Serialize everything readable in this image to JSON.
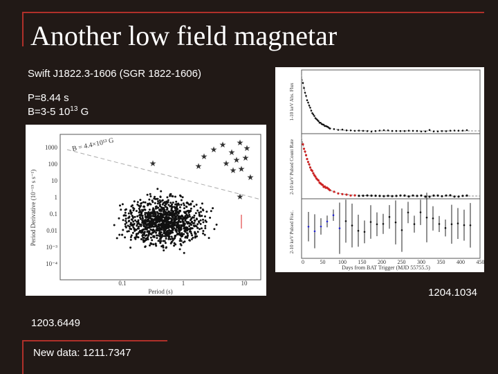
{
  "header": {
    "title": "Another low field magnetar"
  },
  "body": {
    "source": "Swift J1822.3-1606 (SGR 1822-1606)",
    "period": "P=8.44 s",
    "field": {
      "text": "B=3-5 10",
      "exponent": "13",
      "unit": "G"
    },
    "refs": [
      "1204.1034",
      "1203.6449"
    ],
    "new_data": "New data: 1211.7347"
  },
  "figures": {
    "ppdot": {
      "x_label": "Period (s)",
      "y_label": "Period Derivative (10⁻¹⁵ s s⁻¹)",
      "x_ticks": [
        "0.1",
        "1",
        "10"
      ],
      "y_ticks": [
        "1000",
        "100",
        "10",
        "1",
        "0.1",
        "0.01",
        "10⁻³",
        "10⁻⁴"
      ],
      "annotation": "B = 4.4×10¹³ G"
    },
    "lightcurve": {
      "x_label": "Days from BAT Trigger (MJD 55755.5)",
      "x_ticks": [
        "0",
        "50",
        "100",
        "150",
        "200",
        "250",
        "300",
        "350",
        "400",
        "450"
      ],
      "panels": [
        "1-10 keV Abs. Flux",
        "2-10 keV Pulsed Count Rate",
        "2-10 keV Pulsed Frac."
      ]
    }
  }
}
